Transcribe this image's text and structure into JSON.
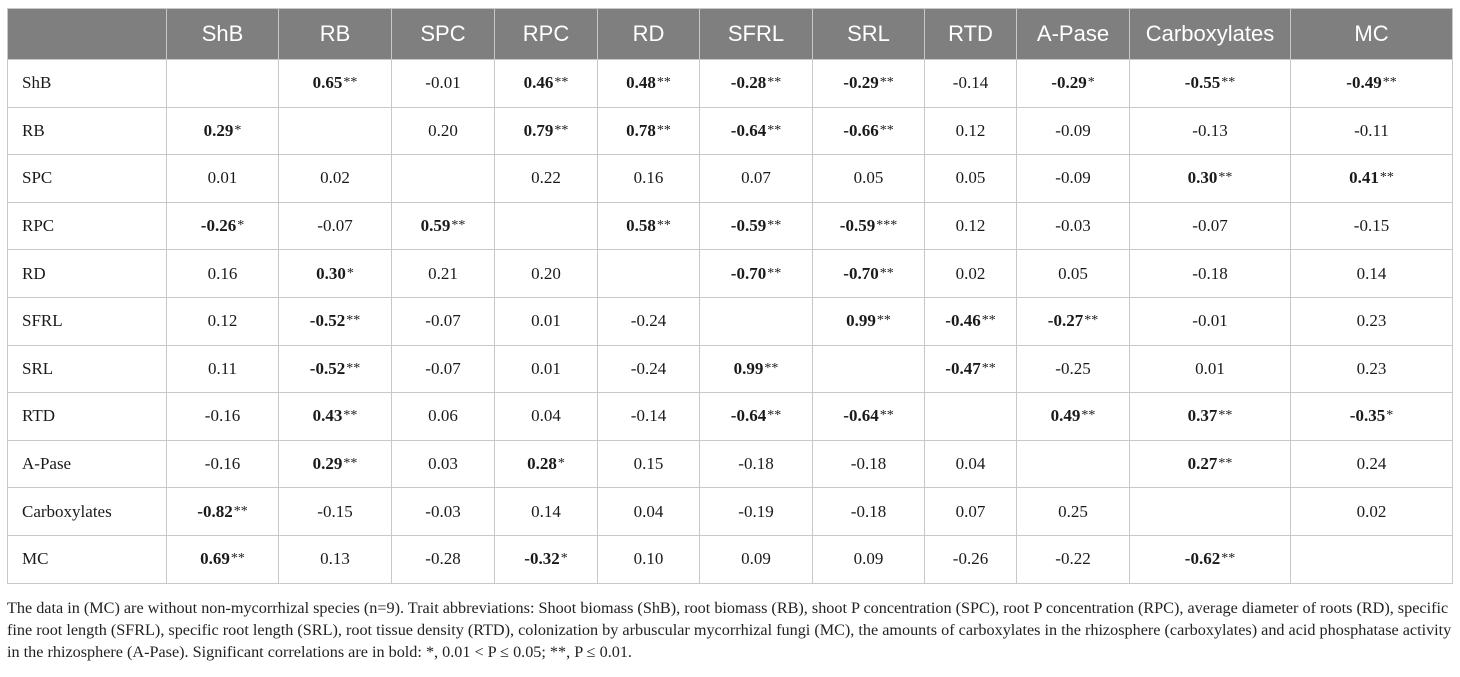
{
  "columns": [
    "",
    "ShB",
    "RB",
    "SPC",
    "RPC",
    "RD",
    "SFRL",
    "SRL",
    "RTD",
    "A-Pase",
    "Carboxylates",
    "MC"
  ],
  "rows": [
    {
      "label": "ShB",
      "cells": [
        {
          "v": ""
        },
        {
          "v": "0.65",
          "sig": "**",
          "bold": true
        },
        {
          "v": "-0.01"
        },
        {
          "v": "0.46",
          "sig": "**",
          "bold": true
        },
        {
          "v": "0.48",
          "sig": "**",
          "bold": true
        },
        {
          "v": "-0.28",
          "sig": "**",
          "bold": true
        },
        {
          "v": "-0.29",
          "sig": "**",
          "bold": true
        },
        {
          "v": "-0.14"
        },
        {
          "v": "-0.29",
          "sig": "*",
          "bold": true
        },
        {
          "v": "-0.55",
          "sig": "**",
          "bold": true
        },
        {
          "v": "-0.49",
          "sig": "**",
          "bold": true
        }
      ]
    },
    {
      "label": "RB",
      "cells": [
        {
          "v": "0.29",
          "sig": "*",
          "bold": true
        },
        {
          "v": ""
        },
        {
          "v": "0.20"
        },
        {
          "v": "0.79",
          "sig": "**",
          "bold": true
        },
        {
          "v": "0.78",
          "sig": "**",
          "bold": true
        },
        {
          "v": "-0.64",
          "sig": "**",
          "bold": true
        },
        {
          "v": "-0.66",
          "sig": "**",
          "bold": true
        },
        {
          "v": "0.12"
        },
        {
          "v": "-0.09"
        },
        {
          "v": "-0.13"
        },
        {
          "v": "-0.11"
        }
      ]
    },
    {
      "label": "SPC",
      "cells": [
        {
          "v": "0.01"
        },
        {
          "v": "0.02"
        },
        {
          "v": ""
        },
        {
          "v": "0.22"
        },
        {
          "v": "0.16"
        },
        {
          "v": "0.07"
        },
        {
          "v": "0.05"
        },
        {
          "v": "0.05"
        },
        {
          "v": "-0.09"
        },
        {
          "v": "0.30",
          "sig": "**",
          "bold": true
        },
        {
          "v": "0.41",
          "sig": "**",
          "bold": true
        }
      ]
    },
    {
      "label": "RPC",
      "cells": [
        {
          "v": "-0.26",
          "sig": "*",
          "bold": true
        },
        {
          "v": "-0.07"
        },
        {
          "v": "0.59",
          "sig": "**",
          "bold": true
        },
        {
          "v": ""
        },
        {
          "v": "0.58",
          "sig": "**",
          "bold": true
        },
        {
          "v": "-0.59",
          "sig": "**",
          "bold": true
        },
        {
          "v": "-0.59",
          "sig": "***",
          "bold": true
        },
        {
          "v": "0.12"
        },
        {
          "v": "-0.03"
        },
        {
          "v": "-0.07"
        },
        {
          "v": "-0.15"
        }
      ]
    },
    {
      "label": "RD",
      "cells": [
        {
          "v": "0.16"
        },
        {
          "v": "0.30",
          "sig": "*",
          "bold": true
        },
        {
          "v": "0.21"
        },
        {
          "v": "0.20"
        },
        {
          "v": ""
        },
        {
          "v": "-0.70",
          "sig": "**",
          "bold": true
        },
        {
          "v": "-0.70",
          "sig": "**",
          "bold": true
        },
        {
          "v": "0.02"
        },
        {
          "v": "0.05"
        },
        {
          "v": "-0.18"
        },
        {
          "v": "0.14"
        }
      ]
    },
    {
      "label": "SFRL",
      "cells": [
        {
          "v": "0.12"
        },
        {
          "v": "-0.52",
          "sig": "**",
          "bold": true
        },
        {
          "v": "-0.07"
        },
        {
          "v": "0.01"
        },
        {
          "v": "-0.24"
        },
        {
          "v": ""
        },
        {
          "v": "0.99",
          "sig": "**",
          "bold": true
        },
        {
          "v": "-0.46",
          "sig": "**",
          "bold": true
        },
        {
          "v": "-0.27",
          "sig": "**",
          "bold": true
        },
        {
          "v": "-0.01"
        },
        {
          "v": "0.23"
        }
      ]
    },
    {
      "label": "SRL",
      "cells": [
        {
          "v": "0.11"
        },
        {
          "v": "-0.52",
          "sig": "**",
          "bold": true
        },
        {
          "v": "-0.07"
        },
        {
          "v": "0.01"
        },
        {
          "v": "-0.24"
        },
        {
          "v": "0.99",
          "sig": "**",
          "bold": true
        },
        {
          "v": ""
        },
        {
          "v": "-0.47",
          "sig": "**",
          "bold": true
        },
        {
          "v": "-0.25"
        },
        {
          "v": "0.01"
        },
        {
          "v": "0.23"
        }
      ]
    },
    {
      "label": "RTD",
      "cells": [
        {
          "v": "-0.16"
        },
        {
          "v": "0.43",
          "sig": "**",
          "bold": true
        },
        {
          "v": "0.06"
        },
        {
          "v": "0.04"
        },
        {
          "v": "-0.14"
        },
        {
          "v": "-0.64",
          "sig": "**",
          "bold": true
        },
        {
          "v": "-0.64",
          "sig": "**",
          "bold": true
        },
        {
          "v": ""
        },
        {
          "v": "0.49",
          "sig": "**",
          "bold": true
        },
        {
          "v": "0.37",
          "sig": "**",
          "bold": true
        },
        {
          "v": "-0.35",
          "sig": "*",
          "bold": true
        }
      ]
    },
    {
      "label": "A-Pase",
      "cells": [
        {
          "v": "-0.16"
        },
        {
          "v": "0.29",
          "sig": "**",
          "bold": true
        },
        {
          "v": "0.03"
        },
        {
          "v": "0.28",
          "sig": "*",
          "bold": true
        },
        {
          "v": "0.15"
        },
        {
          "v": "-0.18"
        },
        {
          "v": "-0.18"
        },
        {
          "v": "0.04"
        },
        {
          "v": ""
        },
        {
          "v": "0.27",
          "sig": "**",
          "bold": true
        },
        {
          "v": "0.24"
        }
      ]
    },
    {
      "label": "Carboxylates",
      "cells": [
        {
          "v": "-0.82",
          "sig": "**",
          "bold": true
        },
        {
          "v": "-0.15"
        },
        {
          "v": "-0.03"
        },
        {
          "v": "0.14"
        },
        {
          "v": "0.04"
        },
        {
          "v": "-0.19"
        },
        {
          "v": "-0.18"
        },
        {
          "v": "0.07"
        },
        {
          "v": "0.25"
        },
        {
          "v": ""
        },
        {
          "v": "0.02"
        }
      ]
    },
    {
      "label": "MC",
      "cells": [
        {
          "v": "0.69",
          "sig": "**",
          "bold": true
        },
        {
          "v": "0.13"
        },
        {
          "v": "-0.28"
        },
        {
          "v": "-0.32",
          "sig": "*",
          "bold": true
        },
        {
          "v": "0.10"
        },
        {
          "v": "0.09"
        },
        {
          "v": "0.09"
        },
        {
          "v": "-0.26"
        },
        {
          "v": "-0.22"
        },
        {
          "v": "-0.62",
          "sig": "**",
          "bold": true
        },
        {
          "v": ""
        }
      ]
    }
  ],
  "footnote": "The data in (MC) are without non-mycorrhizal species (n=9). Trait abbreviations: Shoot biomass (ShB), root biomass (RB), shoot P concentration (SPC), root P concentration (RPC), average diameter of roots (RD), specific fine root length (SFRL), specific root length (SRL), root tissue density (RTD), colonization by arbuscular mycorrhizal fungi (MC), the amounts of carboxylates in the rhizosphere (carboxylates) and acid phosphatase activity in the rhizosphere (A-Pase). Significant correlations are in bold: *, 0.01 < P ≤ 0.05; **, P ≤ 0.01."
}
